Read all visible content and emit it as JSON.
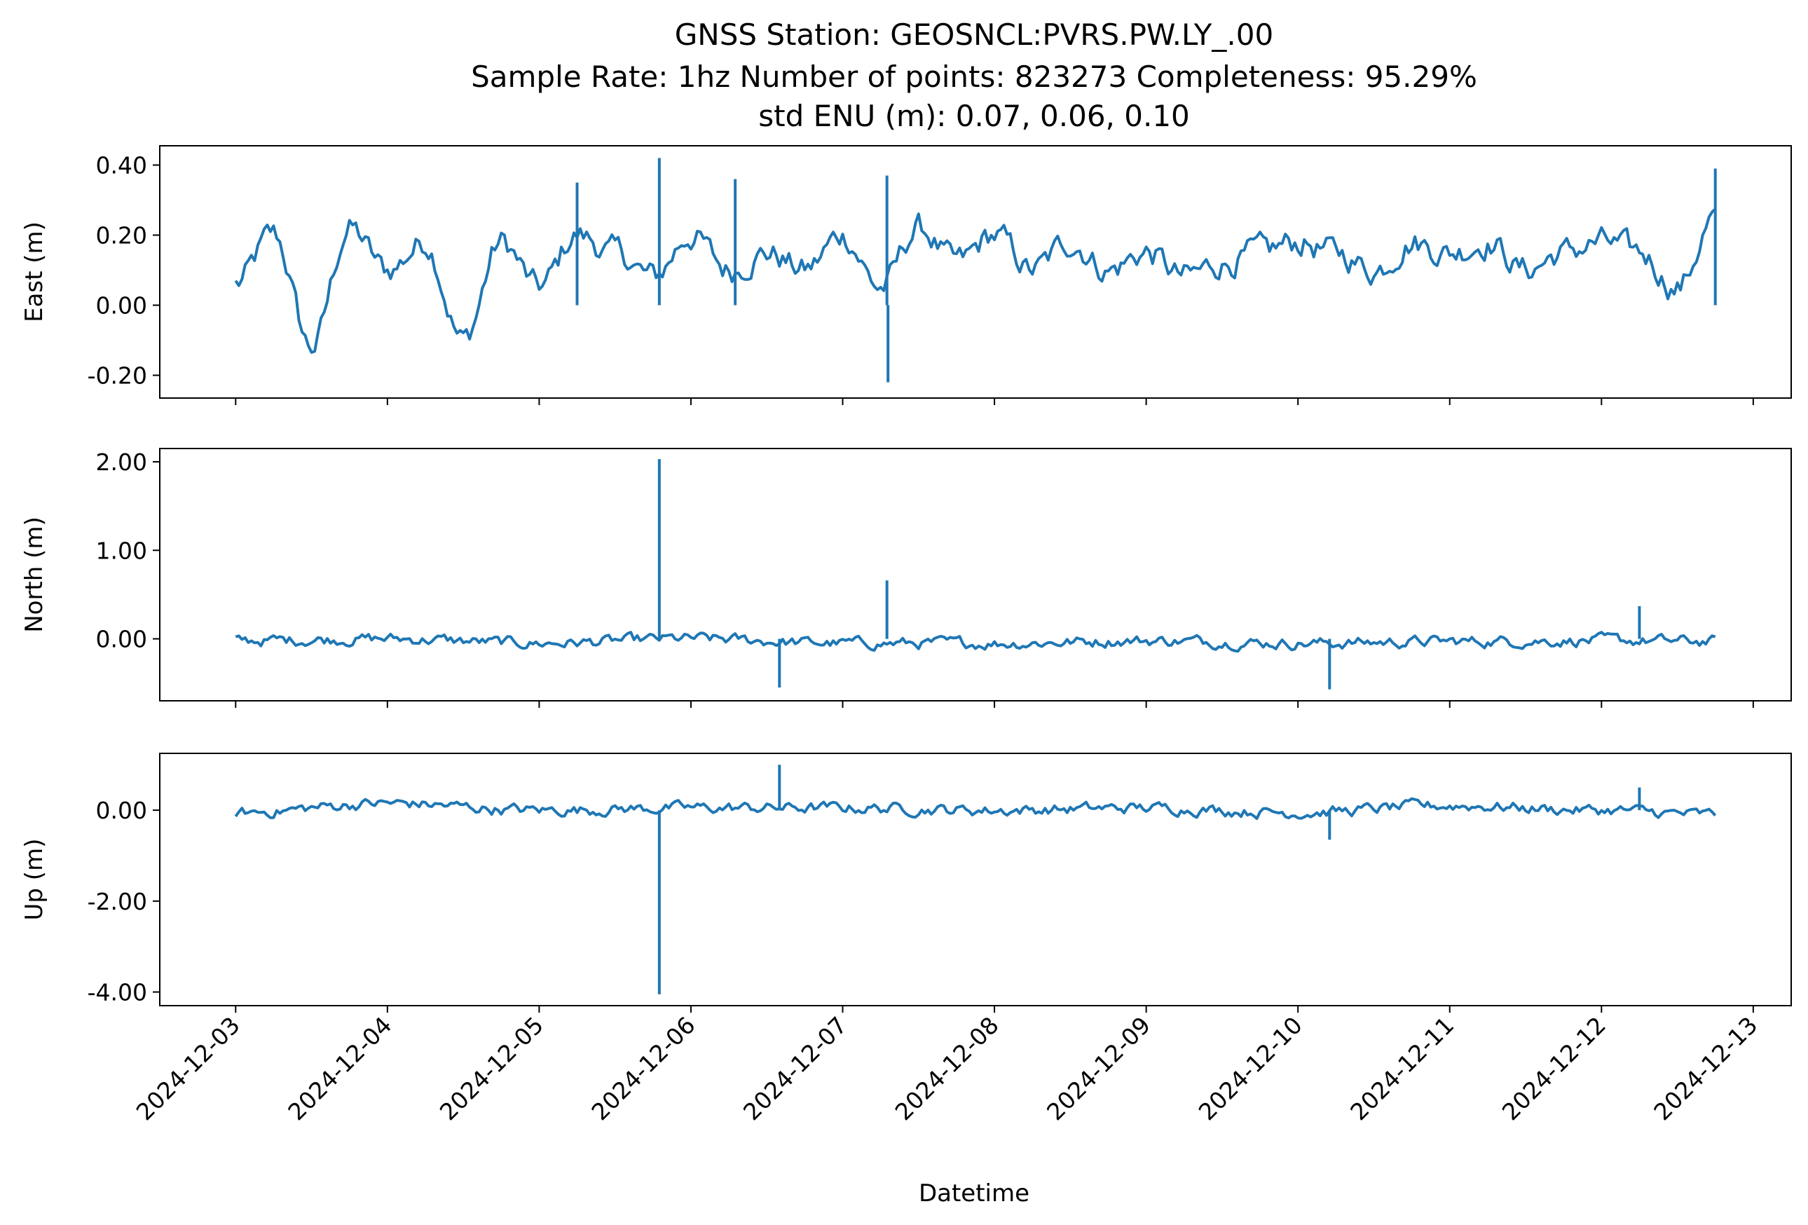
{
  "title_lines": [
    "GNSS Station: GEOSNCL:PVRS.PW.LY_.00",
    "Sample Rate: 1hz   Number of points: 823273    Completeness:  95.29%",
    "std ENU (m):  0.07, 0.06, 0.10"
  ],
  "colors": {
    "series": "#1f77b4",
    "axes": "#000000",
    "background": "#ffffff"
  },
  "chart_data": [
    {
      "type": "line",
      "panel": "east",
      "ylabel": "East (m)",
      "ylim": [
        -0.265,
        0.455
      ],
      "yticks": [
        -0.2,
        0.0,
        0.2,
        0.4
      ],
      "ytick_labels": [
        "-0.20",
        "0.00",
        "0.20",
        "0.40"
      ],
      "x_tick_labels_visible": false,
      "series": [
        {
          "x": [
            "2024-12-03 00:00",
            "2024-12-03 06:00",
            "2024-12-03 12:00",
            "2024-12-03 18:00",
            "2024-12-04 00:00",
            "2024-12-04 06:00",
            "2024-12-04 12:00",
            "2024-12-04 18:00",
            "2024-12-05 00:00",
            "2024-12-05 06:00",
            "2024-12-05 12:00",
            "2024-12-05 18:00",
            "2024-12-06 00:00",
            "2024-12-06 06:00",
            "2024-12-06 12:00",
            "2024-12-06 18:00",
            "2024-12-07 00:00",
            "2024-12-07 06:00",
            "2024-12-07 12:00",
            "2024-12-07 18:00",
            "2024-12-08 00:00",
            "2024-12-08 06:00",
            "2024-12-08 12:00",
            "2024-12-08 18:00",
            "2024-12-09 00:00",
            "2024-12-09 06:00",
            "2024-12-09 12:00",
            "2024-12-09 18:00",
            "2024-12-10 00:00",
            "2024-12-10 06:00",
            "2024-12-10 12:00",
            "2024-12-10 18:00",
            "2024-12-11 00:00",
            "2024-12-11 06:00",
            "2024-12-11 12:00",
            "2024-12-11 18:00",
            "2024-12-12 00:00",
            "2024-12-12 06:00",
            "2024-12-12 12:00",
            "2024-12-12 18:00"
          ],
          "values": [
            0.06,
            0.2,
            -0.12,
            0.22,
            0.1,
            0.18,
            -0.1,
            0.18,
            0.05,
            0.2,
            0.15,
            0.08,
            0.2,
            0.1,
            0.15,
            0.1,
            0.2,
            0.05,
            0.22,
            0.12,
            0.2,
            0.1,
            0.18,
            0.1,
            0.15,
            0.08,
            0.12,
            0.15,
            0.18,
            0.15,
            0.1,
            0.18,
            0.15,
            0.18,
            0.1,
            0.15,
            0.18,
            0.15,
            0.05,
            0.25
          ]
        }
      ],
      "spikes": [
        {
          "x": "2024-12-05 19:00",
          "y": 0.42
        },
        {
          "x": "2024-12-07 07:00",
          "y": 0.37
        },
        {
          "x": "2024-12-07 07:10",
          "y": -0.22
        },
        {
          "x": "2024-12-12 18:00",
          "y": 0.39
        },
        {
          "x": "2024-12-05 06:00",
          "y": 0.35
        },
        {
          "x": "2024-12-06 07:00",
          "y": 0.36
        }
      ]
    },
    {
      "type": "line",
      "panel": "north",
      "ylabel": "North (m)",
      "ylim": [
        -0.7,
        2.15
      ],
      "yticks": [
        0.0,
        1.0,
        2.0
      ],
      "ytick_labels": [
        "0.00",
        "1.00",
        "2.00"
      ],
      "x_tick_labels_visible": false,
      "series": [
        {
          "x": [
            "2024-12-03 00:00",
            "2024-12-04 00:00",
            "2024-12-05 00:00",
            "2024-12-06 00:00",
            "2024-12-07 00:00",
            "2024-12-08 00:00",
            "2024-12-09 00:00",
            "2024-12-10 00:00",
            "2024-12-11 00:00",
            "2024-12-12 00:00",
            "2024-12-12 18:00"
          ],
          "values": [
            -0.02,
            0.0,
            -0.05,
            0.0,
            -0.05,
            -0.05,
            -0.02,
            -0.05,
            -0.03,
            -0.02,
            -0.03
          ]
        }
      ],
      "spikes": [
        {
          "x": "2024-12-05 19:00",
          "y": 2.03
        },
        {
          "x": "2024-12-07 07:00",
          "y": 0.66
        },
        {
          "x": "2024-12-06 14:00",
          "y": -0.55
        },
        {
          "x": "2024-12-10 05:00",
          "y": -0.57
        },
        {
          "x": "2024-12-12 06:00",
          "y": 0.37
        }
      ]
    },
    {
      "type": "line",
      "panel": "up",
      "ylabel": "Up (m)",
      "ylim": [
        -4.3,
        1.25
      ],
      "yticks": [
        -4.0,
        -2.0,
        0.0
      ],
      "ytick_labels": [
        "-4.00",
        "-2.00",
        "0.00"
      ],
      "x_tick_labels_visible": true,
      "xlabel": "Datetime",
      "xticks": [
        "2024-12-03",
        "2024-12-04",
        "2024-12-05",
        "2024-12-06",
        "2024-12-07",
        "2024-12-08",
        "2024-12-09",
        "2024-12-10",
        "2024-12-11",
        "2024-12-12",
        "2024-12-13"
      ],
      "xlim": [
        "2024-12-02 12:00",
        "2024-12-13 06:00"
      ],
      "series": [
        {
          "x": [
            "2024-12-03 00:00",
            "2024-12-04 00:00",
            "2024-12-05 00:00",
            "2024-12-06 00:00",
            "2024-12-07 00:00",
            "2024-12-08 00:00",
            "2024-12-09 00:00",
            "2024-12-10 00:00",
            "2024-12-11 00:00",
            "2024-12-12 00:00",
            "2024-12-12 18:00"
          ],
          "values": [
            -0.05,
            0.15,
            0.0,
            0.05,
            0.05,
            0.0,
            0.05,
            -0.05,
            0.1,
            0.0,
            -0.1
          ]
        }
      ],
      "spikes": [
        {
          "x": "2024-12-05 19:00",
          "y": -4.05
        },
        {
          "x": "2024-12-06 14:00",
          "y": 1.0
        },
        {
          "x": "2024-12-10 05:00",
          "y": -0.65
        },
        {
          "x": "2024-12-12 06:00",
          "y": 0.5
        }
      ]
    }
  ]
}
